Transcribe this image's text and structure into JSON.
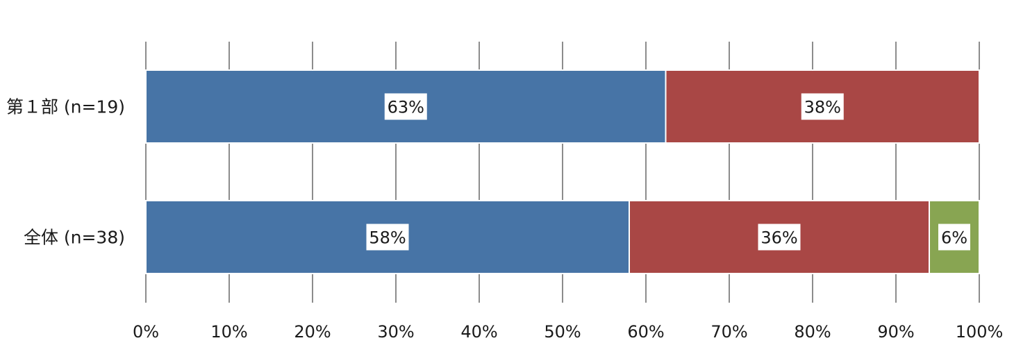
{
  "chart_data": {
    "type": "bar",
    "orientation": "horizontal",
    "stacked": true,
    "percent_stacked": true,
    "categories": [
      "第１部 (n=19)",
      "全体 (n=38)"
    ],
    "series": [
      {
        "color": "#4774a6",
        "values": [
          63,
          58
        ],
        "labels": [
          "63%",
          "58%"
        ]
      },
      {
        "color": "#a94745",
        "values": [
          38,
          36
        ],
        "labels": [
          "38%",
          "36%"
        ]
      },
      {
        "color": "#88a552",
        "values": [
          0,
          6
        ],
        "labels": [
          "",
          "6%"
        ]
      }
    ],
    "x_ticks": [
      "0%",
      "10%",
      "20%",
      "30%",
      "40%",
      "50%",
      "60%",
      "70%",
      "80%",
      "90%",
      "100%"
    ],
    "xlim": [
      0,
      100
    ],
    "grid": true,
    "legend": "none"
  }
}
